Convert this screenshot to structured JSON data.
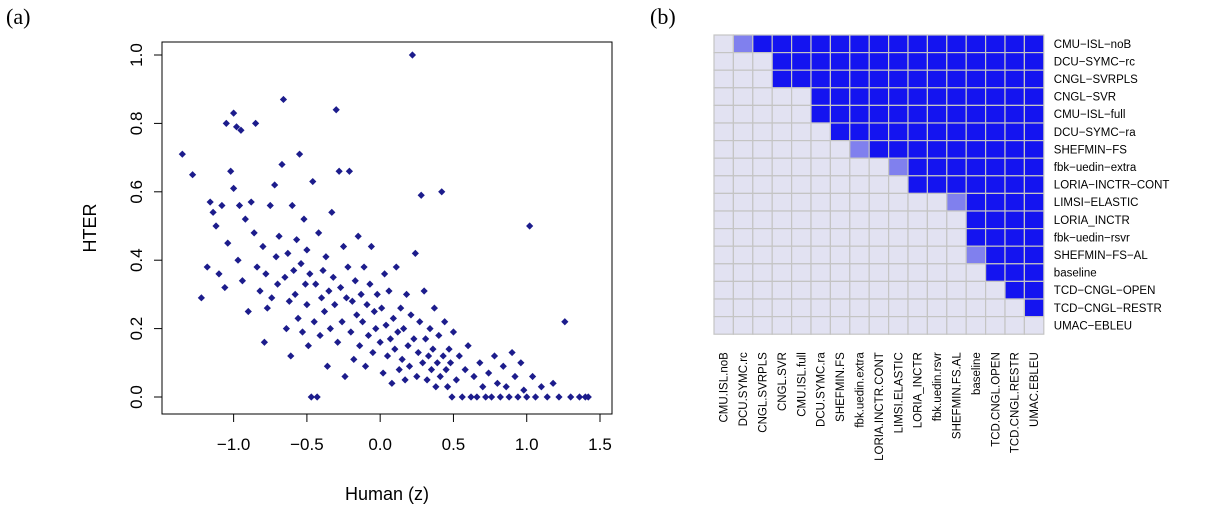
{
  "panel_labels": [
    "(a)",
    "(b)"
  ],
  "colors": {
    "scatter_point": "#1c1c8c",
    "heat_significant": "#1414f0",
    "heat_partial": "#8080ee",
    "heat_not_significant": "#e2e2f2",
    "cell_border": "#c4c4c4"
  },
  "chart_data": [
    {
      "type": "scatter",
      "title": "",
      "xlabel": "Human (z)",
      "ylabel": "HTER",
      "xlim": [
        -1.4,
        1.5
      ],
      "ylim": [
        0,
        1.0
      ],
      "xticks": [
        "−1.0",
        "−0.5",
        "0.0",
        "0.5",
        "1.0",
        "1.5"
      ],
      "yticks": [
        "0.0",
        "0.2",
        "0.4",
        "0.6",
        "0.8",
        "1.0"
      ],
      "marker": "diamond",
      "points": [
        [
          -1.35,
          0.71
        ],
        [
          -1.28,
          0.65
        ],
        [
          -1.22,
          0.29
        ],
        [
          -1.18,
          0.38
        ],
        [
          -1.16,
          0.57
        ],
        [
          -1.14,
          0.54
        ],
        [
          -1.12,
          0.5
        ],
        [
          -1.1,
          0.36
        ],
        [
          -1.08,
          0.56
        ],
        [
          -1.06,
          0.32
        ],
        [
          -1.05,
          0.8
        ],
        [
          -1.04,
          0.45
        ],
        [
          -1.02,
          0.66
        ],
        [
          -1.0,
          0.83
        ],
        [
          -1.0,
          0.61
        ],
        [
          -0.98,
          0.79
        ],
        [
          -0.97,
          0.4
        ],
        [
          -0.96,
          0.56
        ],
        [
          -0.95,
          0.78
        ],
        [
          -0.94,
          0.34
        ],
        [
          -0.92,
          0.52
        ],
        [
          -0.9,
          0.25
        ],
        [
          -0.88,
          0.57
        ],
        [
          -0.86,
          0.48
        ],
        [
          -0.85,
          0.8
        ],
        [
          -0.84,
          0.38
        ],
        [
          -0.82,
          0.31
        ],
        [
          -0.8,
          0.44
        ],
        [
          -0.79,
          0.16
        ],
        [
          -0.78,
          0.36
        ],
        [
          -0.77,
          0.26
        ],
        [
          -0.75,
          0.56
        ],
        [
          -0.74,
          0.29
        ],
        [
          -0.72,
          0.62
        ],
        [
          -0.71,
          0.41
        ],
        [
          -0.7,
          0.33
        ],
        [
          -0.69,
          0.47
        ],
        [
          -0.67,
          0.68
        ],
        [
          -0.66,
          0.87
        ],
        [
          -0.65,
          0.35
        ],
        [
          -0.64,
          0.2
        ],
        [
          -0.63,
          0.42
        ],
        [
          -0.62,
          0.28
        ],
        [
          -0.61,
          0.12
        ],
        [
          -0.6,
          0.56
        ],
        [
          -0.59,
          0.37
        ],
        [
          -0.58,
          0.3
        ],
        [
          -0.57,
          0.46
        ],
        [
          -0.56,
          0.23
        ],
        [
          -0.55,
          0.71
        ],
        [
          -0.54,
          0.39
        ],
        [
          -0.53,
          0.19
        ],
        [
          -0.52,
          0.52
        ],
        [
          -0.51,
          0.33
        ],
        [
          -0.5,
          0.27
        ],
        [
          -0.5,
          0.43
        ],
        [
          -0.49,
          0.15
        ],
        [
          -0.48,
          0.36
        ],
        [
          -0.47,
          0.0
        ],
        [
          -0.46,
          0.63
        ],
        [
          -0.45,
          0.22
        ],
        [
          -0.44,
          0.33
        ],
        [
          -0.43,
          0.0
        ],
        [
          -0.42,
          0.48
        ],
        [
          -0.41,
          0.18
        ],
        [
          -0.4,
          0.29
        ],
        [
          -0.39,
          0.37
        ],
        [
          -0.38,
          0.25
        ],
        [
          -0.37,
          0.41
        ],
        [
          -0.36,
          0.09
        ],
        [
          -0.35,
          0.31
        ],
        [
          -0.34,
          0.2
        ],
        [
          -0.33,
          0.54
        ],
        [
          -0.32,
          0.35
        ],
        [
          -0.31,
          0.27
        ],
        [
          -0.3,
          0.84
        ],
        [
          -0.29,
          0.16
        ],
        [
          -0.28,
          0.66
        ],
        [
          -0.27,
          0.32
        ],
        [
          -0.26,
          0.22
        ],
        [
          -0.25,
          0.44
        ],
        [
          -0.24,
          0.06
        ],
        [
          -0.23,
          0.29
        ],
        [
          -0.22,
          0.38
        ],
        [
          -0.21,
          0.66
        ],
        [
          -0.2,
          0.19
        ],
        [
          -0.19,
          0.28
        ],
        [
          -0.18,
          0.11
        ],
        [
          -0.17,
          0.34
        ],
        [
          -0.16,
          0.24
        ],
        [
          -0.15,
          0.47
        ],
        [
          -0.14,
          0.15
        ],
        [
          -0.13,
          0.3
        ],
        [
          -0.12,
          0.22
        ],
        [
          -0.11,
          0.38
        ],
        [
          -0.1,
          0.09
        ],
        [
          -0.09,
          0.27
        ],
        [
          -0.08,
          0.18
        ],
        [
          -0.07,
          0.33
        ],
        [
          -0.06,
          0.44
        ],
        [
          -0.05,
          0.13
        ],
        [
          -0.04,
          0.25
        ],
        [
          -0.03,
          0.2
        ],
        [
          -0.02,
          0.3
        ],
        [
          0.0,
          0.16
        ],
        [
          0.01,
          0.26
        ],
        [
          0.02,
          0.07
        ],
        [
          0.03,
          0.36
        ],
        [
          0.04,
          0.21
        ],
        [
          0.05,
          0.12
        ],
        [
          0.06,
          0.31
        ],
        [
          0.07,
          0.17
        ],
        [
          0.08,
          0.04
        ],
        [
          0.09,
          0.23
        ],
        [
          0.1,
          0.14
        ],
        [
          0.11,
          0.38
        ],
        [
          0.12,
          0.19
        ],
        [
          0.13,
          0.08
        ],
        [
          0.14,
          0.26
        ],
        [
          0.15,
          0.11
        ],
        [
          0.16,
          0.2
        ],
        [
          0.17,
          0.05
        ],
        [
          0.18,
          0.3
        ],
        [
          0.19,
          0.15
        ],
        [
          0.2,
          0.09
        ],
        [
          0.21,
          0.24
        ],
        [
          0.22,
          1.0
        ],
        [
          0.23,
          0.17
        ],
        [
          0.24,
          0.42
        ],
        [
          0.25,
          0.06
        ],
        [
          0.26,
          0.13
        ],
        [
          0.27,
          0.22
        ],
        [
          0.28,
          0.59
        ],
        [
          0.29,
          0.1
        ],
        [
          0.3,
          0.31
        ],
        [
          0.31,
          0.17
        ],
        [
          0.32,
          0.05
        ],
        [
          0.33,
          0.12
        ],
        [
          0.34,
          0.2
        ],
        [
          0.35,
          0.08
        ],
        [
          0.36,
          0.14
        ],
        [
          0.37,
          0.26
        ],
        [
          0.38,
          0.03
        ],
        [
          0.39,
          0.1
        ],
        [
          0.4,
          0.18
        ],
        [
          0.41,
          0.06
        ],
        [
          0.42,
          0.6
        ],
        [
          0.43,
          0.12
        ],
        [
          0.44,
          0.22
        ],
        [
          0.45,
          0.08
        ],
        [
          0.46,
          0.03
        ],
        [
          0.47,
          0.14
        ],
        [
          0.48,
          0.1
        ],
        [
          0.49,
          0.0
        ],
        [
          0.5,
          0.19
        ],
        [
          0.52,
          0.05
        ],
        [
          0.54,
          0.12
        ],
        [
          0.56,
          0.0
        ],
        [
          0.58,
          0.08
        ],
        [
          0.6,
          0.15
        ],
        [
          0.62,
          0.0
        ],
        [
          0.64,
          0.06
        ],
        [
          0.66,
          0.0
        ],
        [
          0.68,
          0.1
        ],
        [
          0.7,
          0.03
        ],
        [
          0.72,
          0.0
        ],
        [
          0.74,
          0.07
        ],
        [
          0.76,
          0.0
        ],
        [
          0.78,
          0.12
        ],
        [
          0.8,
          0.04
        ],
        [
          0.82,
          0.0
        ],
        [
          0.84,
          0.09
        ],
        [
          0.86,
          0.03
        ],
        [
          0.88,
          0.0
        ],
        [
          0.9,
          0.13
        ],
        [
          0.92,
          0.06
        ],
        [
          0.94,
          0.0
        ],
        [
          0.96,
          0.1
        ],
        [
          0.98,
          0.02
        ],
        [
          1.0,
          0.0
        ],
        [
          1.02,
          0.5
        ],
        [
          1.04,
          0.06
        ],
        [
          1.06,
          0.0
        ],
        [
          1.1,
          0.03
        ],
        [
          1.14,
          0.0
        ],
        [
          1.18,
          0.04
        ],
        [
          1.22,
          0.0
        ],
        [
          1.26,
          0.22
        ],
        [
          1.3,
          0.0
        ],
        [
          1.36,
          0.0
        ],
        [
          1.42,
          0.0
        ],
        [
          1.4,
          0.0
        ]
      ]
    },
    {
      "type": "heatmap",
      "title": "",
      "row_labels": [
        "CMU−ISL−noB",
        "DCU−SYMC−rc",
        "CNGL−SVRPLS",
        "CNGL−SVR",
        "CMU−ISL−full",
        "DCU−SYMC−ra",
        "SHEFMIN−FS",
        "fbk−uedin−extra",
        "LORIA−INCTR−CONT",
        "LIMSI−ELASTIC",
        "LORIA_INCTR",
        "fbk−uedin−rsvr",
        "SHEFMIN−FS−AL",
        "baseline",
        "TCD−CNGL−OPEN",
        "TCD−CNGL−RESTR",
        "UMAC−EBLEU"
      ],
      "col_labels": [
        "CMU.ISL.noB",
        "DCU.SYMC.rc",
        "CNGL.SVRPLS",
        "CNGL.SVR",
        "CMU.ISL.full",
        "DCU.SYMC.ra",
        "SHEFMIN.FS",
        "fbk.uedin.extra",
        "LORIA.INCTR.CONT",
        "LIMSI.ELASTIC",
        "LORIA_INCTR",
        "fbk.uedin.rsvr",
        "SHEFMIN.FS.AL",
        "baseline",
        "TCD.CNGL.OPEN",
        "TCD.CNGL.RESTR",
        "UMAC.EBLEU"
      ],
      "values": [
        [
          0,
          1,
          2,
          2,
          2,
          2,
          2,
          2,
          2,
          2,
          2,
          2,
          2,
          2,
          2,
          2,
          2
        ],
        [
          0,
          0,
          0,
          2,
          2,
          2,
          2,
          2,
          2,
          2,
          2,
          2,
          2,
          2,
          2,
          2,
          2
        ],
        [
          0,
          0,
          0,
          2,
          2,
          2,
          2,
          2,
          2,
          2,
          2,
          2,
          2,
          2,
          2,
          2,
          2
        ],
        [
          0,
          0,
          0,
          0,
          0,
          2,
          2,
          2,
          2,
          2,
          2,
          2,
          2,
          2,
          2,
          2,
          2
        ],
        [
          0,
          0,
          0,
          0,
          0,
          2,
          2,
          2,
          2,
          2,
          2,
          2,
          2,
          2,
          2,
          2,
          2
        ],
        [
          0,
          0,
          0,
          0,
          0,
          0,
          2,
          2,
          2,
          2,
          2,
          2,
          2,
          2,
          2,
          2,
          2
        ],
        [
          0,
          0,
          0,
          0,
          0,
          0,
          0,
          1,
          2,
          2,
          2,
          2,
          2,
          2,
          2,
          2,
          2
        ],
        [
          0,
          0,
          0,
          0,
          0,
          0,
          0,
          0,
          0,
          1,
          2,
          2,
          2,
          2,
          2,
          2,
          2
        ],
        [
          0,
          0,
          0,
          0,
          0,
          0,
          0,
          0,
          0,
          0,
          2,
          2,
          2,
          2,
          2,
          2,
          2
        ],
        [
          0,
          0,
          0,
          0,
          0,
          0,
          0,
          0,
          0,
          0,
          0,
          0,
          1,
          2,
          2,
          2,
          2
        ],
        [
          0,
          0,
          0,
          0,
          0,
          0,
          0,
          0,
          0,
          0,
          0,
          0,
          0,
          2,
          2,
          2,
          2
        ],
        [
          0,
          0,
          0,
          0,
          0,
          0,
          0,
          0,
          0,
          0,
          0,
          0,
          0,
          2,
          2,
          2,
          2
        ],
        [
          0,
          0,
          0,
          0,
          0,
          0,
          0,
          0,
          0,
          0,
          0,
          0,
          0,
          1,
          2,
          2,
          2
        ],
        [
          0,
          0,
          0,
          0,
          0,
          0,
          0,
          0,
          0,
          0,
          0,
          0,
          0,
          0,
          2,
          2,
          2
        ],
        [
          0,
          0,
          0,
          0,
          0,
          0,
          0,
          0,
          0,
          0,
          0,
          0,
          0,
          0,
          0,
          2,
          2
        ],
        [
          0,
          0,
          0,
          0,
          0,
          0,
          0,
          0,
          0,
          0,
          0,
          0,
          0,
          0,
          0,
          0,
          2
        ],
        [
          0,
          0,
          0,
          0,
          0,
          0,
          0,
          0,
          0,
          0,
          0,
          0,
          0,
          0,
          0,
          0,
          0
        ]
      ]
    }
  ]
}
